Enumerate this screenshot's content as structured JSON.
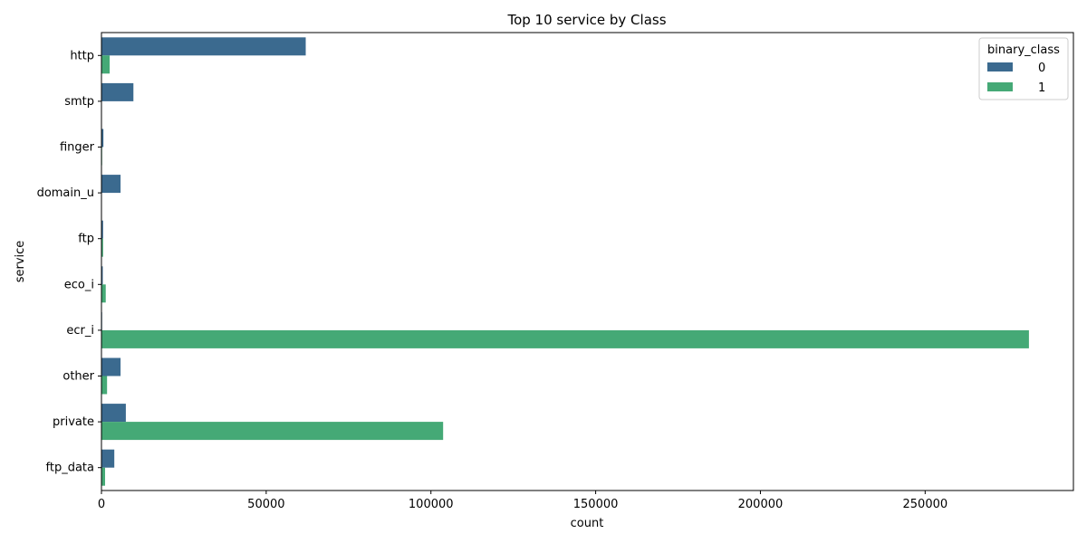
{
  "chart_data": {
    "type": "bar",
    "orientation": "horizontal",
    "title": "Top 10 service by Class",
    "xlabel": "count",
    "ylabel": "service",
    "categories": [
      "http",
      "smtp",
      "finger",
      "domain_u",
      "ftp",
      "eco_i",
      "ecr_i",
      "other",
      "private",
      "ftp_data"
    ],
    "xlim": [
      0,
      295000
    ],
    "xticks": [
      "0",
      "50000",
      "100000",
      "150000",
      "200000",
      "250000"
    ],
    "xtick_values": [
      0,
      50000,
      100000,
      150000,
      200000,
      250000
    ],
    "grid": false,
    "legend": {
      "title": "binary_class",
      "position": "top-right"
    },
    "series": [
      {
        "name": "0",
        "color": "#3b6a8f",
        "values": [
          62000,
          9700,
          600,
          5800,
          500,
          400,
          200,
          5800,
          7400,
          3900
        ]
      },
      {
        "name": "1",
        "color": "#45a976",
        "values": [
          2500,
          0,
          200,
          0,
          500,
          1300,
          281500,
          1700,
          103700,
          1100
        ]
      }
    ]
  }
}
